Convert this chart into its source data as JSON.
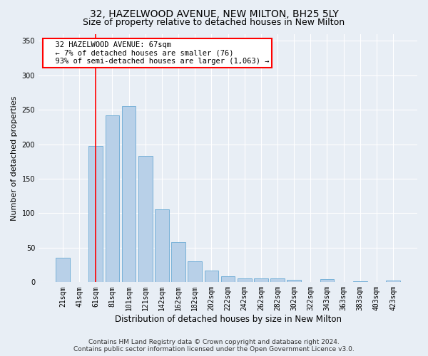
{
  "title": "32, HAZELWOOD AVENUE, NEW MILTON, BH25 5LY",
  "subtitle": "Size of property relative to detached houses in New Milton",
  "xlabel": "Distribution of detached houses by size in New Milton",
  "ylabel": "Number of detached properties",
  "categories": [
    "21sqm",
    "41sqm",
    "61sqm",
    "81sqm",
    "101sqm",
    "121sqm",
    "142sqm",
    "162sqm",
    "182sqm",
    "202sqm",
    "222sqm",
    "242sqm",
    "262sqm",
    "282sqm",
    "302sqm",
    "322sqm",
    "343sqm",
    "363sqm",
    "383sqm",
    "403sqm",
    "423sqm"
  ],
  "values": [
    35,
    0,
    197,
    242,
    255,
    183,
    106,
    58,
    30,
    17,
    9,
    5,
    6,
    5,
    3,
    0,
    4,
    0,
    1,
    0,
    2
  ],
  "bar_color": "#b8d0e8",
  "bar_edge_color": "#6aaad4",
  "bar_edge_width": 0.6,
  "red_line_index": 2.0,
  "annotation_text": "  32 HAZELWOOD AVENUE: 67sqm\n  ← 7% of detached houses are smaller (76)\n  93% of semi-detached houses are larger (1,063) →",
  "annotation_box_color": "white",
  "annotation_box_edge_color": "red",
  "ylim": [
    0,
    360
  ],
  "yticks": [
    0,
    50,
    100,
    150,
    200,
    250,
    300,
    350
  ],
  "background_color": "#e8eef5",
  "plot_background_color": "#e8eef5",
  "footer1": "Contains HM Land Registry data © Crown copyright and database right 2024.",
  "footer2": "Contains public sector information licensed under the Open Government Licence v3.0.",
  "title_fontsize": 10,
  "subtitle_fontsize": 9,
  "xlabel_fontsize": 8.5,
  "ylabel_fontsize": 8,
  "tick_fontsize": 7,
  "annotation_fontsize": 7.5,
  "footer_fontsize": 6.5
}
